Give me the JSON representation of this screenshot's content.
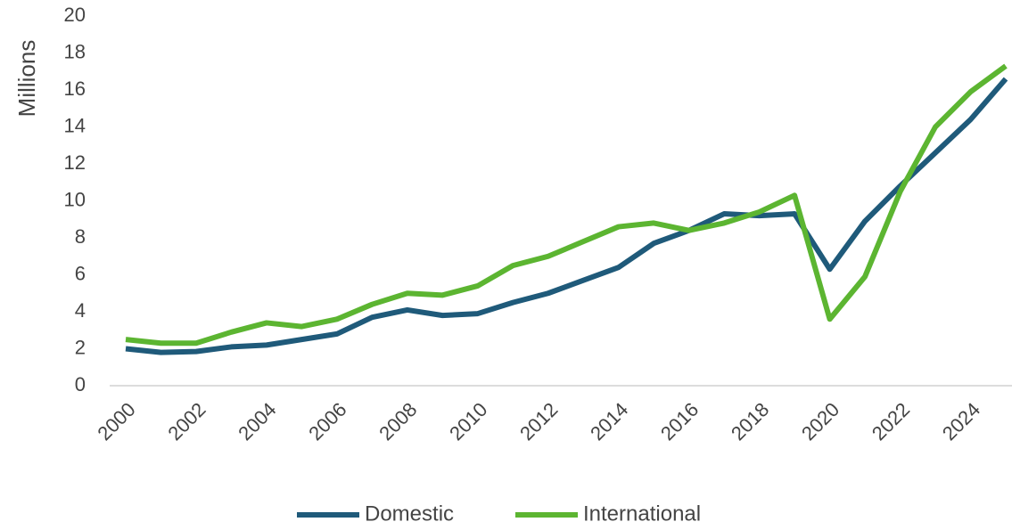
{
  "chart_data": {
    "type": "line",
    "y_label": "Millions",
    "x": [
      2000,
      2001,
      2002,
      2003,
      2004,
      2005,
      2006,
      2007,
      2008,
      2009,
      2010,
      2011,
      2012,
      2013,
      2014,
      2015,
      2016,
      2017,
      2018,
      2019,
      2020,
      2021,
      2022,
      2023,
      2024,
      2025
    ],
    "series": [
      {
        "name": "Domestic",
        "color": "#1f5a7a",
        "values": [
          2.0,
          1.8,
          1.85,
          2.1,
          2.2,
          2.5,
          2.8,
          3.7,
          4.1,
          3.8,
          3.9,
          4.5,
          5.0,
          5.7,
          6.4,
          7.7,
          8.4,
          9.3,
          9.2,
          9.3,
          6.3,
          8.9,
          10.8,
          12.6,
          14.4,
          16.6
        ]
      },
      {
        "name": "International",
        "color": "#5cb531",
        "values": [
          2.5,
          2.3,
          2.3,
          2.9,
          3.4,
          3.2,
          3.6,
          4.4,
          5.0,
          4.9,
          5.4,
          6.5,
          7.0,
          7.8,
          8.6,
          8.8,
          8.4,
          8.8,
          9.4,
          10.3,
          3.6,
          5.9,
          10.5,
          14.0,
          15.9,
          17.3
        ]
      }
    ],
    "xlim": [
      2000,
      2025
    ],
    "xticks": [
      2000,
      2002,
      2004,
      2006,
      2008,
      2010,
      2012,
      2014,
      2016,
      2018,
      2020,
      2022,
      2024
    ],
    "ylim": [
      0,
      20
    ],
    "yticks": [
      0,
      2,
      4,
      6,
      8,
      10,
      12,
      14,
      16,
      18,
      20
    ],
    "grid": false,
    "legend": "bottom"
  }
}
